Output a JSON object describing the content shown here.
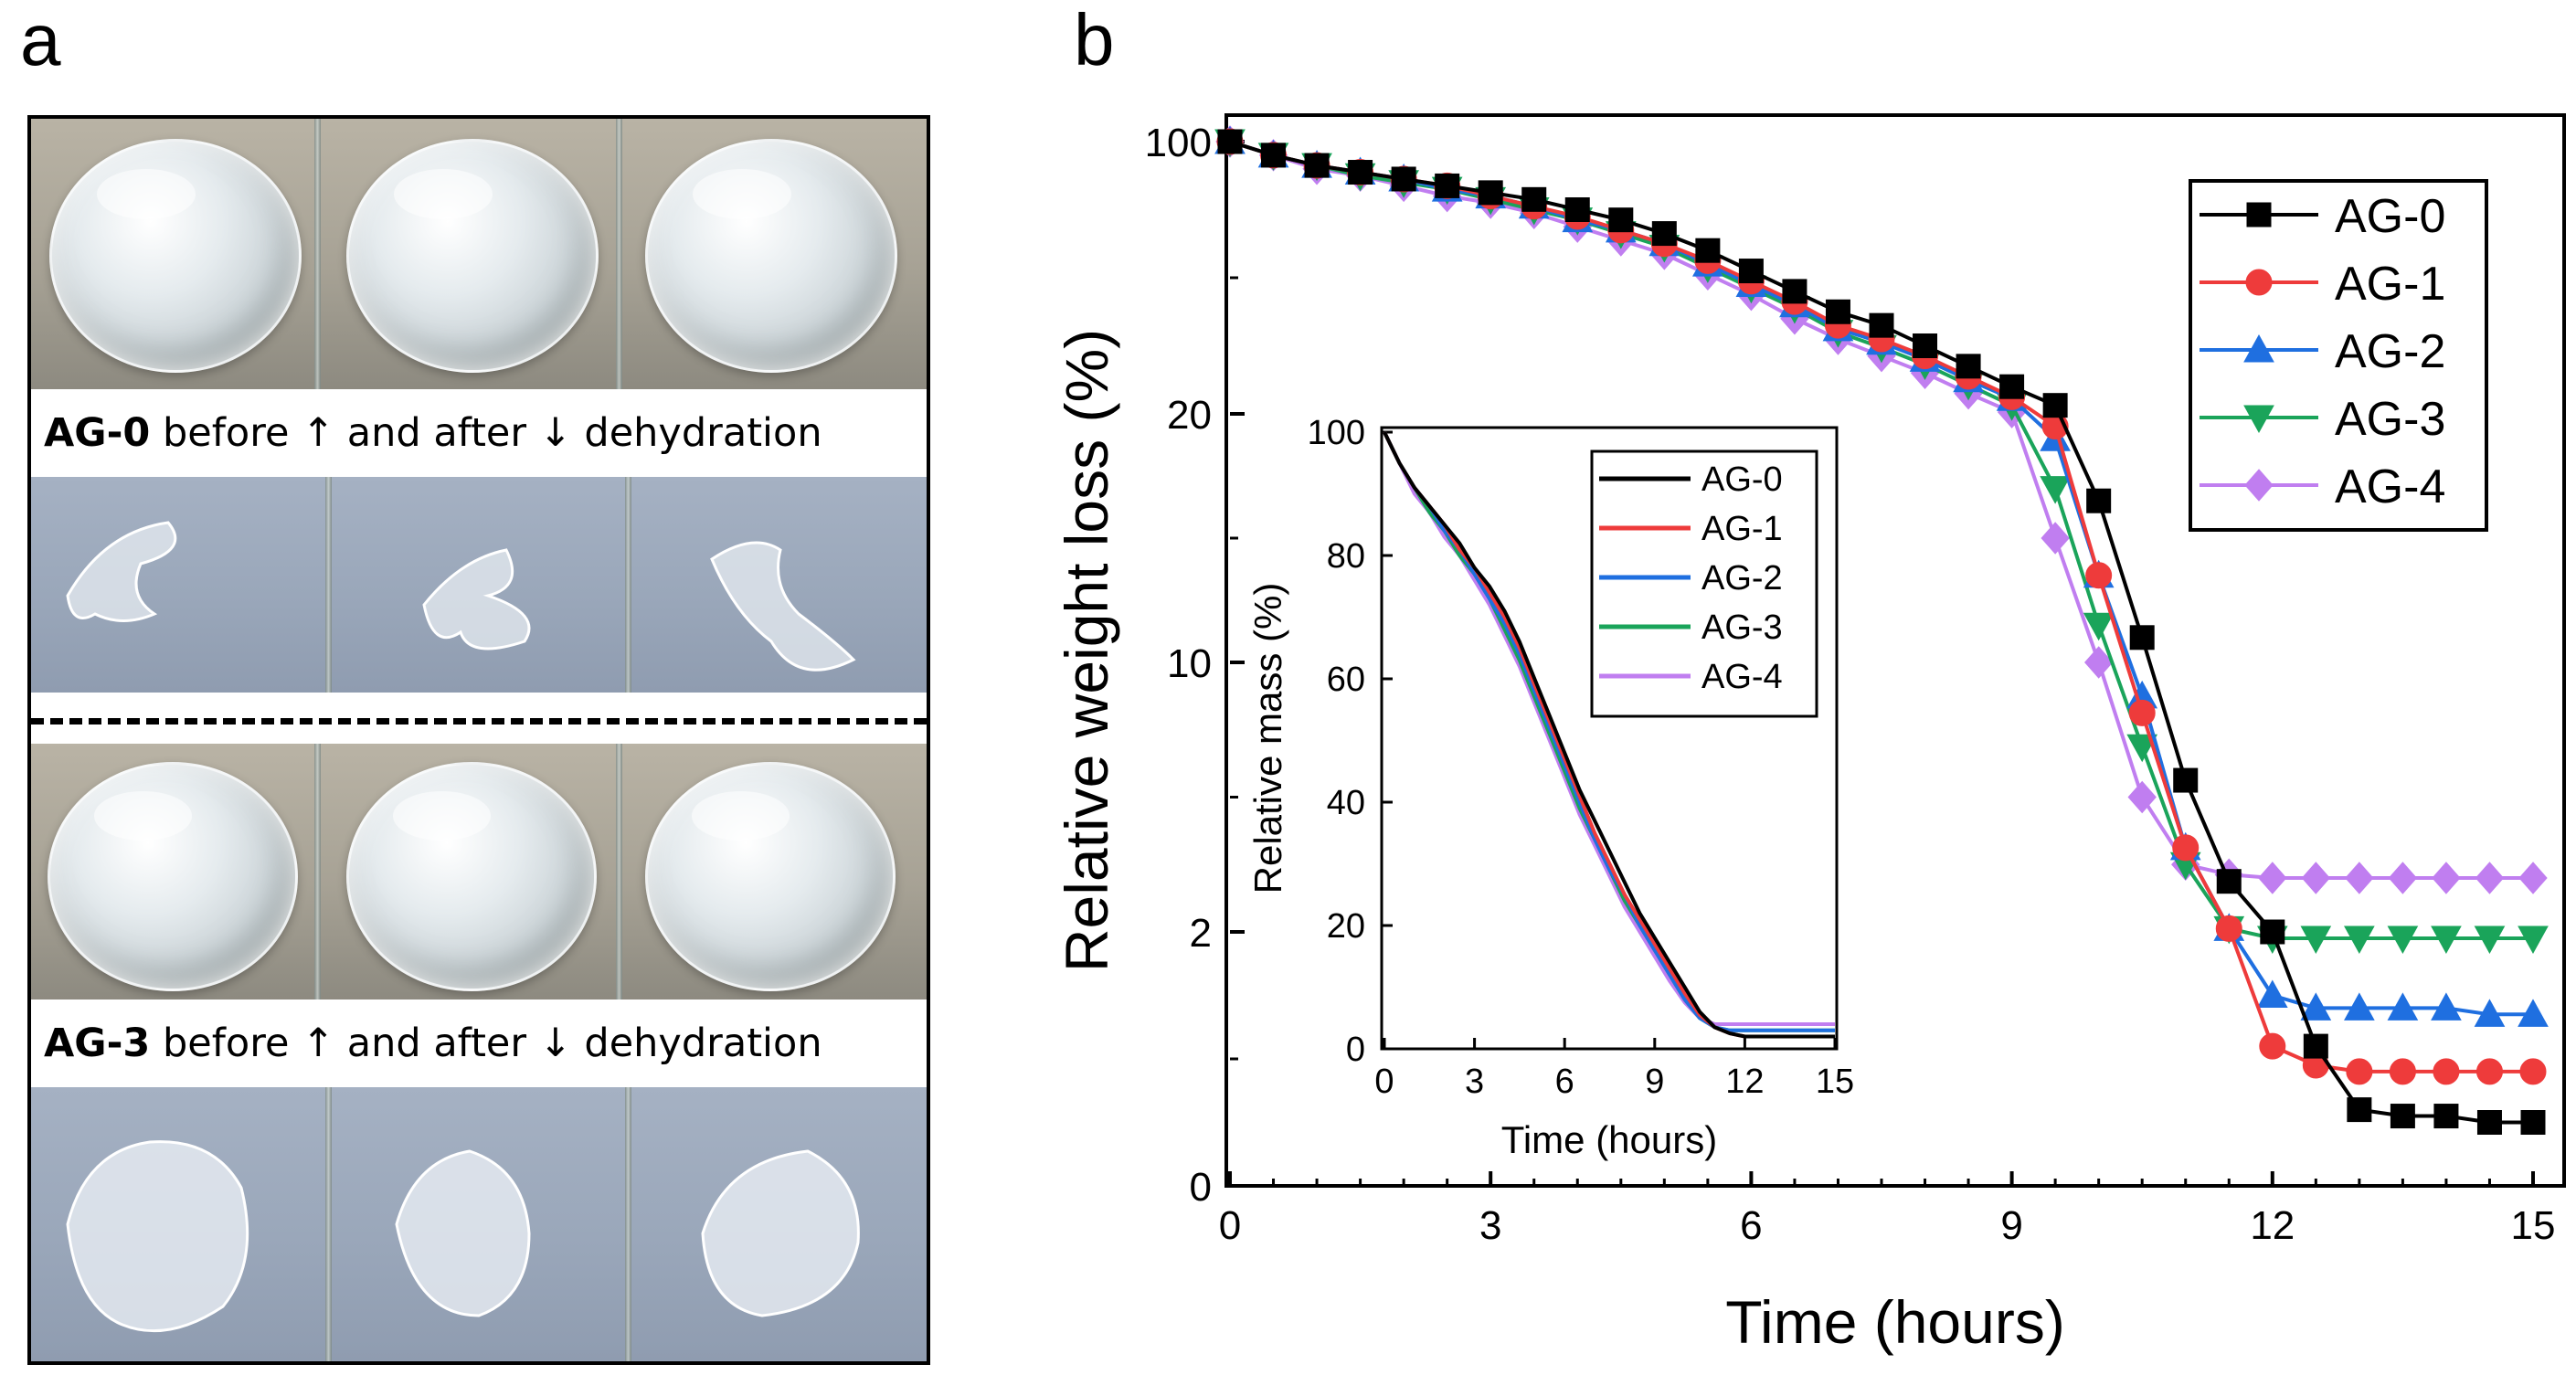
{
  "panel_labels": {
    "a": "a",
    "b": "b"
  },
  "photos": {
    "caption_top": {
      "sample": "AG-0",
      "text": "before ↑ and after ↓ dehydration"
    },
    "caption_bottom": {
      "sample": "AG-3",
      "text": "before ↑ and after ↓ dehydration"
    }
  },
  "colors": {
    "AG-0": "#000000",
    "AG-1": "#ee3b3b",
    "AG-2": "#1f6fe0",
    "AG-3": "#1aa45a",
    "AG-4": "#c07ef0"
  },
  "chart_data": [
    {
      "type": "line",
      "name": "main",
      "xlabel": "Time (hours)",
      "ylabel": "Relative weight loss (%)",
      "xlim": [
        0,
        15
      ],
      "xticks": [
        0,
        3,
        6,
        9,
        12,
        15
      ],
      "ytick_labels": [
        "0",
        "2",
        "10",
        "20",
        "100"
      ],
      "yaxis_note": "non-linear (compressed, log-like) scale",
      "legend": {
        "position": "top-right",
        "entries": [
          "AG-0",
          "AG-1",
          "AG-2",
          "AG-3",
          "AG-4"
        ]
      },
      "x": [
        0,
        0.5,
        1,
        1.5,
        2,
        2.5,
        3,
        3.5,
        4,
        4.5,
        5,
        5.5,
        6,
        6.5,
        7,
        7.5,
        8,
        8.5,
        9,
        9.5,
        10,
        10.5,
        11,
        11.5,
        12,
        12.5,
        13,
        13.5,
        14,
        14.5,
        15
      ],
      "series": [
        {
          "name": "AG-0",
          "marker": "square",
          "values": [
            100,
            96,
            93,
            91,
            89,
            87,
            85,
            83,
            80,
            77,
            73,
            68,
            62,
            56,
            50,
            46,
            40,
            34,
            28,
            22.5,
            16.5,
            11,
            6.5,
            3.5,
            2,
            1.1,
            0.6,
            0.55,
            0.55,
            0.5,
            0.5
          ]
        },
        {
          "name": "AG-1",
          "marker": "circle",
          "values": [
            100,
            96,
            93,
            91,
            89,
            87,
            84,
            81,
            78,
            74,
            70,
            65,
            59,
            53,
            46,
            42,
            37,
            31,
            25,
            19.5,
            13.5,
            8.5,
            4.5,
            2.1,
            1.1,
            0.95,
            0.9,
            0.9,
            0.9,
            0.9,
            0.9
          ]
        },
        {
          "name": "AG-2",
          "marker": "triangle-up",
          "values": [
            100,
            96,
            93,
            91,
            89,
            86,
            84,
            81,
            77,
            74,
            70,
            64,
            58,
            52,
            45,
            41,
            36,
            30,
            24.5,
            19,
            13.5,
            9,
            4.5,
            2.1,
            1.5,
            1.4,
            1.4,
            1.4,
            1.4,
            1.35,
            1.35
          ]
        },
        {
          "name": "AG-3",
          "marker": "triangle-down",
          "values": [
            100,
            96,
            93,
            90,
            88,
            86,
            83,
            80,
            77,
            73,
            69,
            63,
            57,
            51,
            44,
            39.5,
            34.5,
            28.5,
            22.5,
            17,
            11.5,
            7.5,
            4,
            2.1,
            1.95,
            1.95,
            1.95,
            1.95,
            1.95,
            1.95,
            1.95
          ]
        },
        {
          "name": "AG-4",
          "marker": "diamond",
          "values": [
            100,
            96,
            92,
            90,
            87,
            84,
            82,
            79,
            75,
            71,
            67,
            61,
            55,
            48,
            42,
            37,
            32,
            26,
            20.5,
            15,
            10,
            6,
            4,
            3.7,
            3.6,
            3.6,
            3.6,
            3.6,
            3.6,
            3.6,
            3.6
          ]
        }
      ]
    },
    {
      "type": "line",
      "name": "inset",
      "xlabel": "Time (hours)",
      "ylabel": "Relative mass  (%)",
      "xlim": [
        0,
        15
      ],
      "ylim": [
        0,
        100
      ],
      "xticks": [
        0,
        3,
        6,
        9,
        12,
        15
      ],
      "yticks": [
        0,
        20,
        40,
        60,
        80,
        100
      ],
      "legend": {
        "position": "top-right",
        "entries": [
          "AG-0",
          "AG-1",
          "AG-2",
          "AG-3",
          "AG-4"
        ]
      },
      "x": [
        0,
        0.5,
        1,
        1.5,
        2,
        2.5,
        3,
        3.5,
        4,
        4.5,
        5,
        5.5,
        6,
        6.5,
        7,
        7.5,
        8,
        8.5,
        9,
        9.5,
        10,
        10.5,
        11,
        11.5,
        12,
        12.5,
        13,
        13.5,
        14,
        14.5,
        15
      ],
      "series": [
        {
          "name": "AG-0",
          "values": [
            100,
            95,
            91,
            88,
            85,
            82,
            78,
            75,
            71,
            66,
            60,
            54,
            48,
            42,
            37,
            32,
            27,
            22,
            18,
            14,
            10,
            6,
            3.5,
            2.5,
            2,
            2,
            2,
            2,
            2,
            2,
            2
          ]
        },
        {
          "name": "AG-1",
          "values": [
            100,
            95,
            91,
            88,
            85,
            81,
            78,
            74,
            70,
            65,
            59,
            53,
            47,
            41,
            35,
            30,
            25,
            21,
            17,
            13,
            9,
            5.5,
            3.5,
            2.5,
            2,
            2,
            2,
            2,
            2,
            2,
            2
          ]
        },
        {
          "name": "AG-2",
          "values": [
            100,
            95,
            91,
            88,
            84,
            81,
            77,
            73,
            69,
            64,
            58,
            52,
            46,
            40,
            34,
            29,
            25,
            20,
            16,
            12,
            8,
            5,
            3.5,
            3,
            3,
            3,
            3,
            3,
            3,
            3,
            3
          ]
        },
        {
          "name": "AG-3",
          "values": [
            100,
            95,
            91,
            87,
            84,
            80,
            77,
            73,
            68,
            63,
            57,
            51,
            45,
            39,
            34,
            29,
            24,
            20,
            16,
            12,
            8,
            5,
            3.5,
            3,
            3,
            3,
            3,
            3,
            3,
            3,
            3
          ]
        },
        {
          "name": "AG-4",
          "values": [
            100,
            95,
            90,
            87,
            83,
            80,
            76,
            72,
            67,
            62,
            56,
            50,
            44,
            38,
            33,
            28,
            23,
            19,
            15,
            11,
            7.5,
            5,
            4,
            4,
            4,
            4,
            4,
            4,
            4,
            4,
            4
          ]
        }
      ]
    }
  ]
}
